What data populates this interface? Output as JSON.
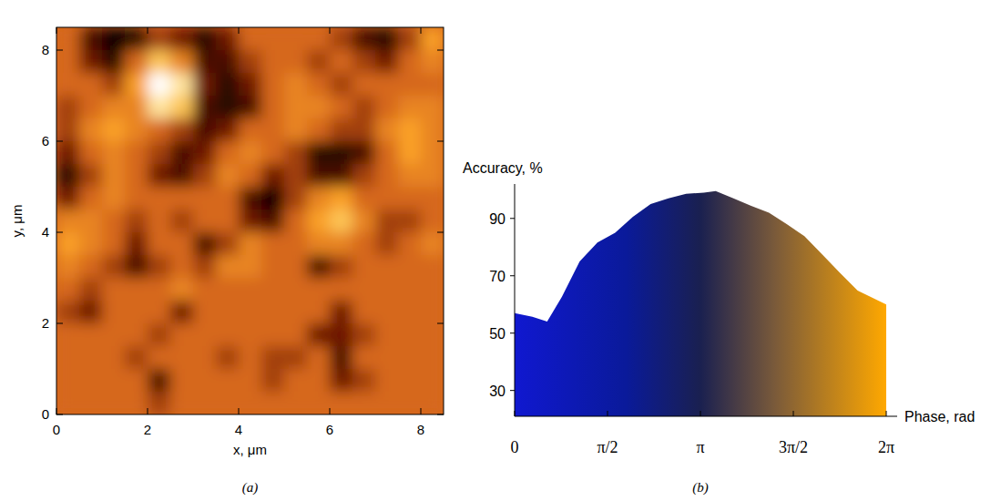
{
  "chart_data": [
    {
      "type": "heatmap",
      "caption": "(a)",
      "xlabel": "x, μm",
      "ylabel": "y, μm",
      "xlim": [
        0,
        8.5
      ],
      "ylim": [
        0,
        8.5
      ],
      "xticks": [
        0,
        2,
        4,
        6,
        8
      ],
      "yticks": [
        0,
        2,
        4,
        6,
        8
      ],
      "zlim": [
        0,
        1
      ],
      "x": [
        0.25,
        0.75,
        1.25,
        1.75,
        2.25,
        2.75,
        3.25,
        3.75,
        4.25,
        4.75,
        5.25,
        5.75,
        6.25,
        6.75,
        7.25,
        7.75,
        8.25
      ],
      "y": [
        8.25,
        7.75,
        7.25,
        6.75,
        6.25,
        5.75,
        5.25,
        4.75,
        4.25,
        3.75,
        3.25,
        2.75,
        2.25,
        1.75,
        1.25,
        0.75,
        0.25
      ],
      "z": [
        [
          0.5,
          0.2,
          0.0,
          0.1,
          0.4,
          0.3,
          0.1,
          0.3,
          0.5,
          0.5,
          0.5,
          0.5,
          0.4,
          0.2,
          0.1,
          0.4,
          0.7
        ],
        [
          0.5,
          0.3,
          0.1,
          0.5,
          0.8,
          0.6,
          0.2,
          0.2,
          0.4,
          0.5,
          0.5,
          0.4,
          0.5,
          0.4,
          0.3,
          0.5,
          0.6
        ],
        [
          0.5,
          0.5,
          0.4,
          0.7,
          1.0,
          0.9,
          0.3,
          0.1,
          0.3,
          0.5,
          0.6,
          0.5,
          0.4,
          0.5,
          0.5,
          0.5,
          0.5
        ],
        [
          0.4,
          0.5,
          0.6,
          0.6,
          0.9,
          0.8,
          0.2,
          0.1,
          0.2,
          0.5,
          0.6,
          0.6,
          0.5,
          0.4,
          0.5,
          0.6,
          0.6
        ],
        [
          0.4,
          0.6,
          0.7,
          0.6,
          0.5,
          0.4,
          0.2,
          0.3,
          0.5,
          0.5,
          0.6,
          0.5,
          0.4,
          0.4,
          0.6,
          0.7,
          0.6
        ],
        [
          0.3,
          0.5,
          0.6,
          0.5,
          0.4,
          0.2,
          0.3,
          0.5,
          0.6,
          0.5,
          0.4,
          0.1,
          0.1,
          0.2,
          0.5,
          0.7,
          0.6
        ],
        [
          0.1,
          0.4,
          0.6,
          0.5,
          0.3,
          0.2,
          0.4,
          0.6,
          0.5,
          0.3,
          0.4,
          0.2,
          0.2,
          0.4,
          0.5,
          0.6,
          0.6
        ],
        [
          0.3,
          0.5,
          0.6,
          0.5,
          0.5,
          0.5,
          0.5,
          0.5,
          0.2,
          0.0,
          0.4,
          0.6,
          0.7,
          0.5,
          0.5,
          0.5,
          0.5
        ],
        [
          0.6,
          0.6,
          0.5,
          0.4,
          0.5,
          0.4,
          0.5,
          0.5,
          0.3,
          0.2,
          0.5,
          0.7,
          0.8,
          0.6,
          0.4,
          0.4,
          0.5
        ],
        [
          0.7,
          0.6,
          0.5,
          0.3,
          0.5,
          0.5,
          0.2,
          0.4,
          0.6,
          0.5,
          0.5,
          0.6,
          0.6,
          0.5,
          0.4,
          0.5,
          0.6
        ],
        [
          0.6,
          0.5,
          0.4,
          0.2,
          0.4,
          0.5,
          0.4,
          0.6,
          0.6,
          0.5,
          0.5,
          0.2,
          0.4,
          0.5,
          0.5,
          0.5,
          0.5
        ],
        [
          0.5,
          0.4,
          0.5,
          0.5,
          0.5,
          0.6,
          0.5,
          0.5,
          0.5,
          0.5,
          0.5,
          0.5,
          0.5,
          0.5,
          0.5,
          0.5,
          0.5
        ],
        [
          0.4,
          0.3,
          0.5,
          0.5,
          0.5,
          0.3,
          0.5,
          0.5,
          0.5,
          0.5,
          0.5,
          0.5,
          0.3,
          0.5,
          0.5,
          0.5,
          0.5
        ],
        [
          0.5,
          0.5,
          0.5,
          0.5,
          0.4,
          0.5,
          0.5,
          0.5,
          0.5,
          0.5,
          0.5,
          0.3,
          0.3,
          0.4,
          0.5,
          0.5,
          0.5
        ],
        [
          0.5,
          0.5,
          0.5,
          0.4,
          0.5,
          0.5,
          0.5,
          0.4,
          0.5,
          0.4,
          0.4,
          0.5,
          0.2,
          0.5,
          0.5,
          0.5,
          0.5
        ],
        [
          0.5,
          0.5,
          0.5,
          0.5,
          0.2,
          0.5,
          0.5,
          0.5,
          0.5,
          0.4,
          0.5,
          0.5,
          0.3,
          0.4,
          0.5,
          0.5,
          0.5
        ],
        [
          0.5,
          0.5,
          0.5,
          0.5,
          0.4,
          0.5,
          0.5,
          0.5,
          0.5,
          0.5,
          0.5,
          0.5,
          0.5,
          0.5,
          0.5,
          0.5,
          0.5
        ]
      ]
    },
    {
      "type": "area",
      "caption": "(b)",
      "xlabel": "Phase, rad",
      "ylabel": "Accuracy, %",
      "xlim": [
        0,
        6.2832
      ],
      "ylim": [
        21,
        102
      ],
      "xticks": [
        0,
        {
          "value": 1.5708,
          "label": "π/2"
        },
        {
          "value": 3.1416,
          "label": "π"
        },
        {
          "value": 4.7124,
          "label": "3π/2"
        },
        {
          "value": 6.2832,
          "label": "2π"
        }
      ],
      "yticks": [
        30,
        50,
        70,
        90
      ],
      "x": [
        0,
        0.3,
        0.55,
        0.8,
        1.1,
        1.4,
        1.7,
        2.0,
        2.3,
        2.6,
        2.9,
        3.2,
        3.4,
        3.7,
        4.0,
        4.3,
        4.6,
        4.9,
        5.2,
        5.5,
        5.8,
        6.2832
      ],
      "values": [
        57,
        55.7,
        54,
        62.7,
        75,
        81.6,
        85,
        90.6,
        95,
        97,
        98.6,
        99,
        99.5,
        97,
        94.4,
        92,
        88,
        83.8,
        77.5,
        71,
        64.8,
        60
      ]
    }
  ]
}
